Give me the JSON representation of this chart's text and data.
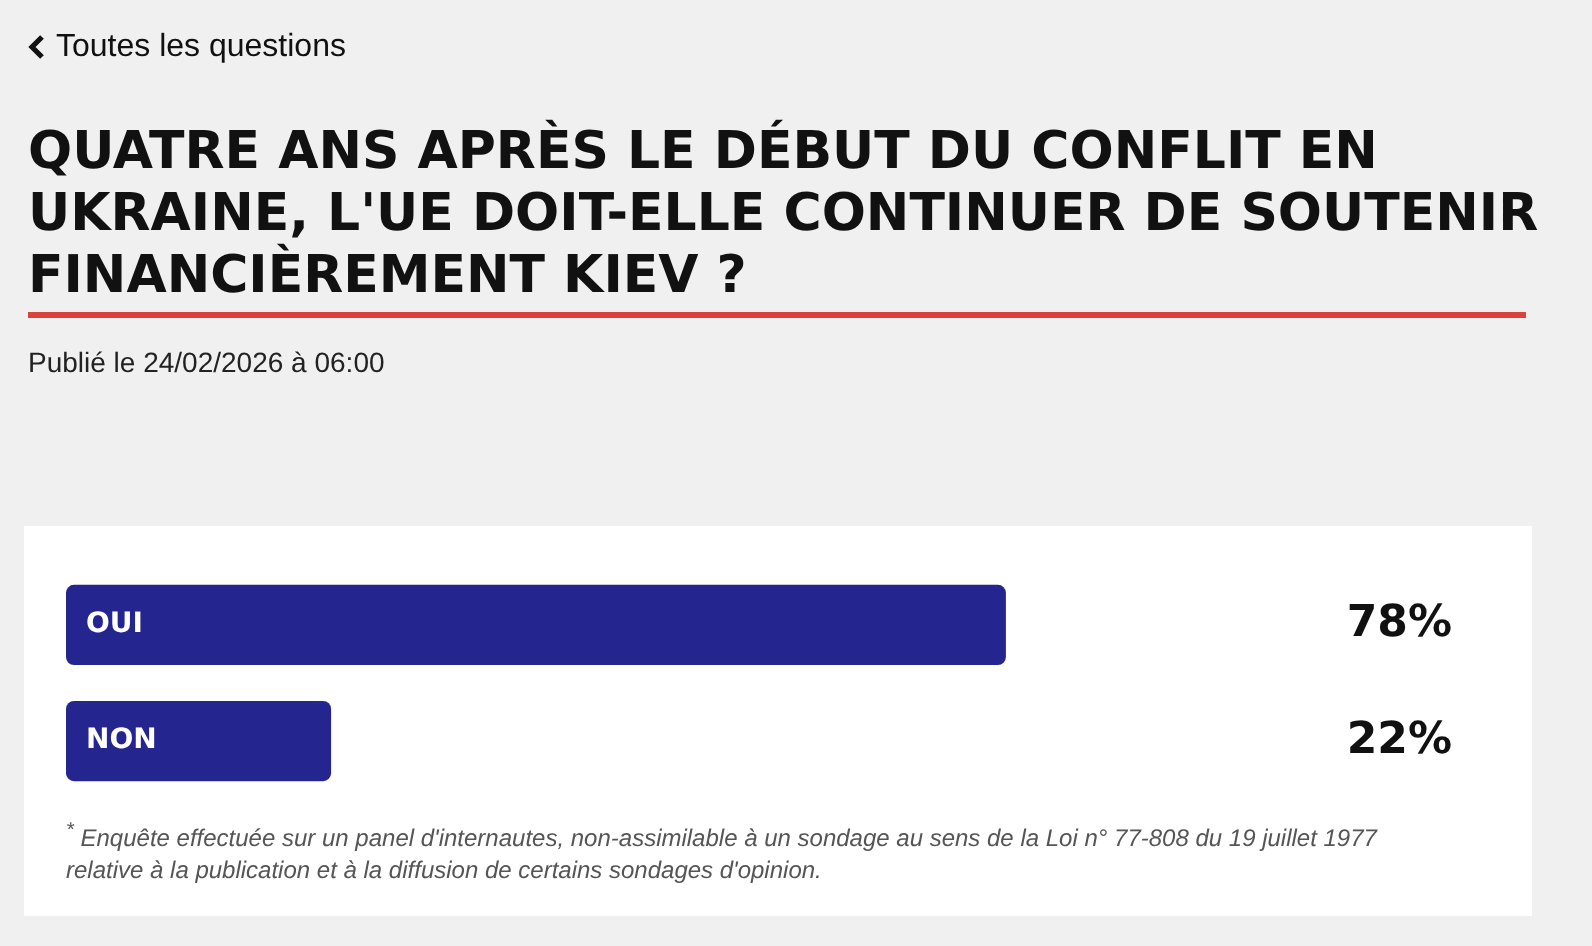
{
  "chart_data": {
    "type": "bar",
    "orientation": "horizontal",
    "title": "QUATRE ANS APRÈS LE DÉBUT DU CONFLIT EN UKRAINE, L'UE DOIT-ELLE CONTINUER DE SOUTENIR FINANCIÈREMENT KIEV ?",
    "subtitle": "Publié le 24/02/2026 à 06:00",
    "annotations": [
      "Toutes les questions",
      "$^{*}$ Enquête effectuée sur un panel d'internautes, non-assimilable à un sondage au sens de la Loi n° 77-808 du 19 juillet 1977 relative à la publication et à la diffusion de certains sondages d'opinion."
    ],
    "categories": [
      "OUI",
      "NON"
    ],
    "values": [
      78,
      22
    ],
    "value_labels": [
      "78%",
      "22%"
    ],
    "color": "#24258f",
    "tick_labels": "y"
  }
}
